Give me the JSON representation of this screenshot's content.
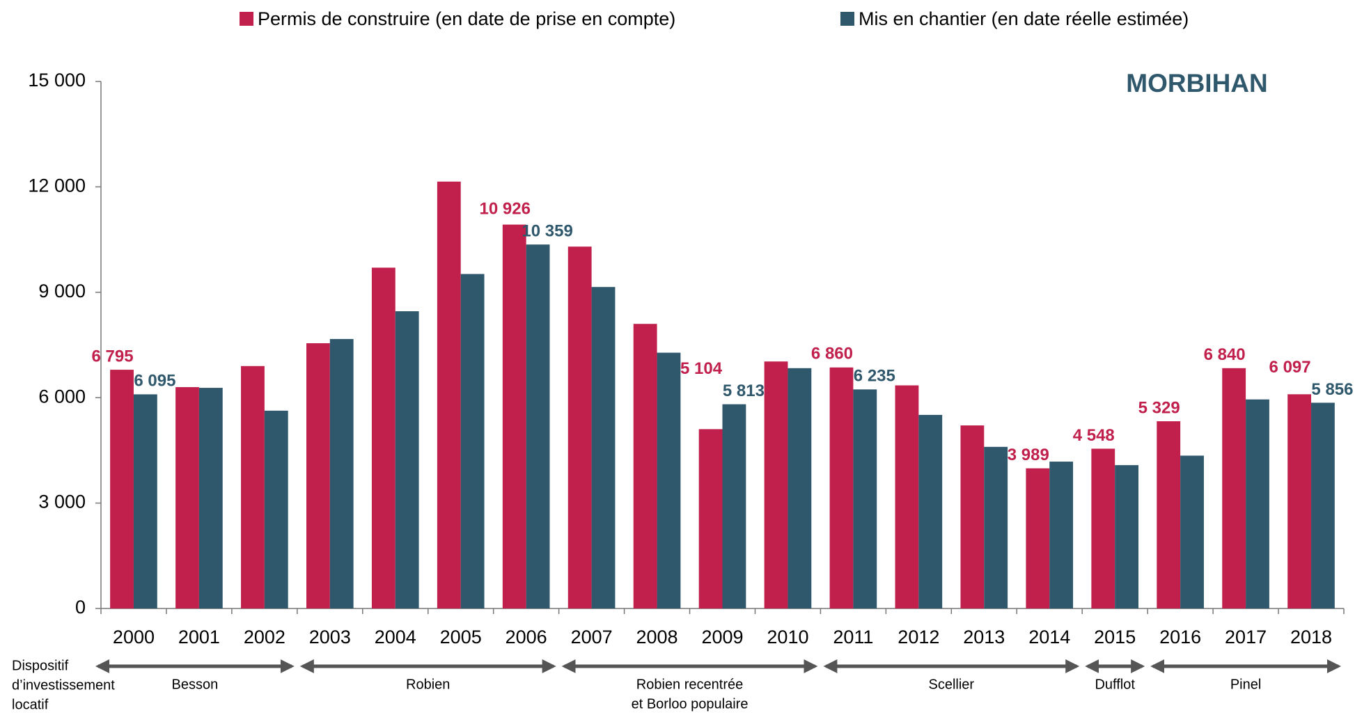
{
  "chart_data": {
    "type": "bar",
    "title": "MORBIHAN",
    "categories": [
      "2000",
      "2001",
      "2002",
      "2003",
      "2004",
      "2005",
      "2006",
      "2007",
      "2008",
      "2009",
      "2010",
      "2011",
      "2012",
      "2013",
      "2014",
      "2015",
      "2016",
      "2017",
      "2018"
    ],
    "series": [
      {
        "name": "Permis de construire (en date de prise en compte)",
        "color": "#c0204b",
        "values": [
          6795,
          6300,
          6900,
          7550,
          9700,
          12150,
          10926,
          10300,
          8100,
          5104,
          7030,
          6860,
          6350,
          5210,
          3989,
          4548,
          5329,
          6840,
          6097
        ],
        "value_labels": [
          "6 795",
          null,
          null,
          null,
          null,
          null,
          "10 926",
          null,
          null,
          "5 104",
          null,
          "6 860",
          null,
          null,
          "3 989",
          "4 548",
          "5 329",
          "6 840",
          "6 097"
        ]
      },
      {
        "name": "Mis en chantier (en date réelle estimée)",
        "color": "#30586c",
        "values": [
          6095,
          6280,
          5630,
          7670,
          8460,
          9520,
          10359,
          9150,
          7280,
          5813,
          6840,
          6235,
          5510,
          4600,
          4180,
          4080,
          4350,
          5950,
          5856
        ],
        "value_labels": [
          "6 095",
          null,
          null,
          null,
          null,
          null,
          "10 359",
          null,
          null,
          "5 813",
          null,
          "6 235",
          null,
          null,
          null,
          null,
          null,
          null,
          "5 856"
        ]
      }
    ],
    "ylim": [
      0,
      15000
    ],
    "yticks": [
      0,
      {
        "value": 3000,
        "label": "3 000"
      },
      {
        "value": 6000,
        "label": "6 000"
      },
      {
        "value": 9000,
        "label": "9 000"
      },
      {
        "value": 12000,
        "label": "12 000"
      },
      {
        "value": 15000,
        "label": "15 000"
      }
    ],
    "grid": false,
    "legend": "top",
    "periods_title": [
      "Dispositif",
      "d’investissement",
      "locatif"
    ],
    "periods": [
      {
        "lines": [
          "Besson"
        ],
        "from": "2000",
        "to": "2002"
      },
      {
        "lines": [
          "Robien"
        ],
        "from": "2003",
        "to": "2006"
      },
      {
        "lines": [
          "Robien recentrée",
          "et Borloo populaire"
        ],
        "from": "2007",
        "to": "2010"
      },
      {
        "lines": [
          "Scellier"
        ],
        "from": "2011",
        "to": "2014"
      },
      {
        "lines": [
          "Dufflot"
        ],
        "from": "2015",
        "to": "2015"
      },
      {
        "lines": [
          "Pinel"
        ],
        "from": "2016",
        "to": "2018"
      }
    ]
  }
}
